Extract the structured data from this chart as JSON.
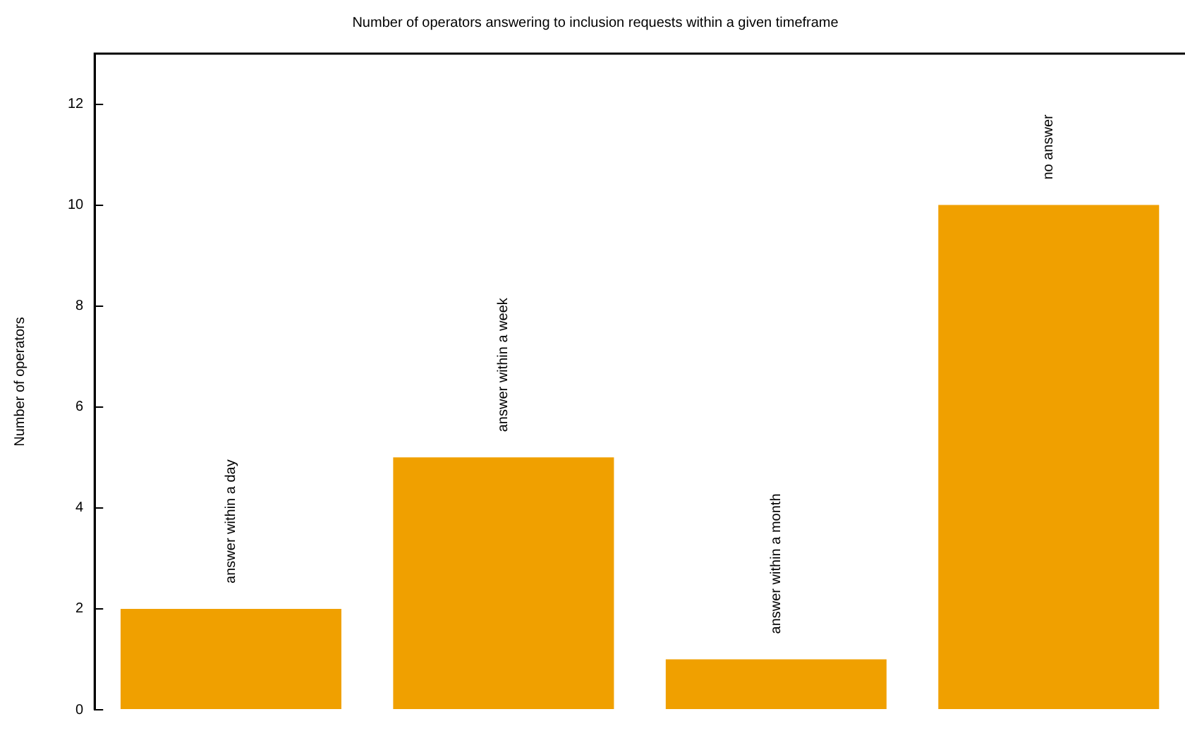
{
  "chart_data": {
    "type": "bar",
    "title": "Number of operators answering to inclusion requests within a given timeframe",
    "ylabel": "Number of operators",
    "categories": [
      "answer within a day",
      "answer within a week",
      "answer within a month",
      "no answer"
    ],
    "values": [
      2,
      5,
      1,
      10
    ],
    "color": "#f0a000",
    "ylim": [
      0,
      13
    ],
    "yticks": [
      0,
      2,
      4,
      6,
      8,
      10,
      12
    ],
    "grid": false,
    "legend": false,
    "tick_labels": "y"
  }
}
